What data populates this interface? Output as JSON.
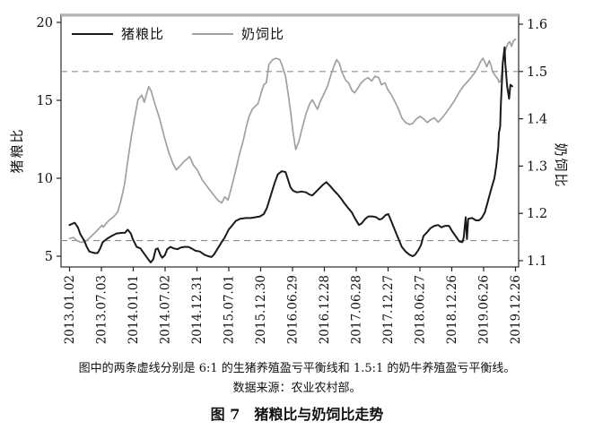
{
  "figure": {
    "note": "图中的两条虚线分别是 6:1 的生猪养殖盈亏平衡线和 1.5:1 的奶牛养殖盈亏平衡线。",
    "source": "数据来源：农业农村部。",
    "title": "图 7　猪粮比与奶饲比走势"
  },
  "chart_data": {
    "type": "line",
    "legend_position": "top-left-inside",
    "left_axis": {
      "label": "猪粮比",
      "ticks": [
        "20",
        "15",
        "10",
        "5"
      ],
      "range": [
        4.3,
        20.5
      ]
    },
    "right_axis": {
      "label": "奶饲比",
      "ticks": [
        "1.6",
        "1.5",
        "1.4",
        "1.3",
        "1.2",
        "1.1"
      ],
      "range": [
        1.09,
        1.62
      ]
    },
    "x_axis": {
      "tick_labels": [
        "2013.01.02",
        "2013.07.03",
        "2014.01.01",
        "2014.07.02",
        "2014.12.31",
        "2015.07.01",
        "2015.12.30",
        "2016.06.29",
        "2016.12.28",
        "2017.06.28",
        "2017.12.27",
        "2018.06.27",
        "2018.12.26",
        "2019.06.26",
        "2019.12.26"
      ],
      "start_year": 2013.0,
      "end_year": 2019.98
    },
    "reference_lines": [
      {
        "name": "pig-breakeven",
        "axis": "left",
        "value": 6,
        "style": "dashed",
        "meaning": "6:1 生猪养殖盈亏平衡线"
      },
      {
        "name": "milk-breakeven",
        "axis": "right",
        "value": 1.5,
        "style": "dashed",
        "meaning": "1.5:1 奶牛养殖盈亏平衡线"
      }
    ],
    "series": [
      {
        "name": "猪粮比",
        "axis": "left",
        "color": "#1a1a1a",
        "width": 2.0,
        "points": [
          [
            2013.0,
            7.0
          ],
          [
            2013.08,
            7.15
          ],
          [
            2013.13,
            6.85
          ],
          [
            2013.17,
            6.4
          ],
          [
            2013.23,
            6.0
          ],
          [
            2013.27,
            5.6
          ],
          [
            2013.31,
            5.3
          ],
          [
            2013.39,
            5.2
          ],
          [
            2013.44,
            5.2
          ],
          [
            2013.48,
            5.5
          ],
          [
            2013.52,
            5.9
          ],
          [
            2013.58,
            6.1
          ],
          [
            2013.66,
            6.3
          ],
          [
            2013.73,
            6.45
          ],
          [
            2013.82,
            6.5
          ],
          [
            2013.87,
            6.5
          ],
          [
            2013.91,
            6.7
          ],
          [
            2013.96,
            6.45
          ],
          [
            2013.99,
            6.1
          ],
          [
            2014.05,
            5.6
          ],
          [
            2014.11,
            5.5
          ],
          [
            2014.18,
            5.1
          ],
          [
            2014.24,
            4.75
          ],
          [
            2014.27,
            4.6
          ],
          [
            2014.31,
            4.8
          ],
          [
            2014.35,
            5.45
          ],
          [
            2014.38,
            5.5
          ],
          [
            2014.42,
            5.1
          ],
          [
            2014.45,
            4.9
          ],
          [
            2014.49,
            5.05
          ],
          [
            2014.53,
            5.45
          ],
          [
            2014.58,
            5.6
          ],
          [
            2014.63,
            5.5
          ],
          [
            2014.69,
            5.45
          ],
          [
            2014.74,
            5.55
          ],
          [
            2014.8,
            5.6
          ],
          [
            2014.86,
            5.6
          ],
          [
            2014.91,
            5.5
          ],
          [
            2014.97,
            5.35
          ],
          [
            2015.04,
            5.3
          ],
          [
            2015.11,
            5.1
          ],
          [
            2015.17,
            5.0
          ],
          [
            2015.22,
            4.95
          ],
          [
            2015.26,
            5.1
          ],
          [
            2015.32,
            5.5
          ],
          [
            2015.38,
            5.9
          ],
          [
            2015.43,
            6.2
          ],
          [
            2015.49,
            6.7
          ],
          [
            2015.55,
            7.0
          ],
          [
            2015.6,
            7.25
          ],
          [
            2015.67,
            7.4
          ],
          [
            2015.76,
            7.45
          ],
          [
            2015.84,
            7.45
          ],
          [
            2015.91,
            7.5
          ],
          [
            2015.98,
            7.55
          ],
          [
            2016.04,
            7.7
          ],
          [
            2016.09,
            8.1
          ],
          [
            2016.15,
            8.9
          ],
          [
            2016.21,
            9.7
          ],
          [
            2016.26,
            10.25
          ],
          [
            2016.32,
            10.45
          ],
          [
            2016.38,
            10.4
          ],
          [
            2016.42,
            9.9
          ],
          [
            2016.46,
            9.4
          ],
          [
            2016.5,
            9.2
          ],
          [
            2016.56,
            9.1
          ],
          [
            2016.63,
            9.15
          ],
          [
            2016.7,
            9.1
          ],
          [
            2016.76,
            8.95
          ],
          [
            2016.8,
            8.9
          ],
          [
            2016.85,
            9.1
          ],
          [
            2016.91,
            9.35
          ],
          [
            2016.97,
            9.6
          ],
          [
            2017.02,
            9.75
          ],
          [
            2017.08,
            9.5
          ],
          [
            2017.13,
            9.25
          ],
          [
            2017.19,
            9.0
          ],
          [
            2017.25,
            8.7
          ],
          [
            2017.3,
            8.4
          ],
          [
            2017.36,
            8.1
          ],
          [
            2017.42,
            7.8
          ],
          [
            2017.47,
            7.4
          ],
          [
            2017.53,
            7.0
          ],
          [
            2017.57,
            7.1
          ],
          [
            2017.63,
            7.4
          ],
          [
            2017.68,
            7.55
          ],
          [
            2017.74,
            7.55
          ],
          [
            2017.8,
            7.5
          ],
          [
            2017.85,
            7.35
          ],
          [
            2017.89,
            7.4
          ],
          [
            2017.95,
            7.65
          ],
          [
            2017.99,
            7.7
          ],
          [
            2018.03,
            7.3
          ],
          [
            2018.09,
            6.7
          ],
          [
            2018.15,
            6.1
          ],
          [
            2018.2,
            5.6
          ],
          [
            2018.26,
            5.3
          ],
          [
            2018.32,
            5.1
          ],
          [
            2018.37,
            5.0
          ],
          [
            2018.41,
            5.1
          ],
          [
            2018.46,
            5.4
          ],
          [
            2018.5,
            5.7
          ],
          [
            2018.54,
            6.3
          ],
          [
            2018.6,
            6.55
          ],
          [
            2018.65,
            6.8
          ],
          [
            2018.71,
            6.95
          ],
          [
            2018.77,
            7.0
          ],
          [
            2018.82,
            6.85
          ],
          [
            2018.88,
            6.95
          ],
          [
            2018.94,
            6.95
          ],
          [
            2018.99,
            6.6
          ],
          [
            2019.05,
            6.25
          ],
          [
            2019.1,
            5.95
          ],
          [
            2019.15,
            5.9
          ],
          [
            2019.17,
            6.2
          ],
          [
            2019.2,
            7.5
          ],
          [
            2019.22,
            6.1
          ],
          [
            2019.24,
            7.4
          ],
          [
            2019.3,
            7.45
          ],
          [
            2019.36,
            7.3
          ],
          [
            2019.41,
            7.3
          ],
          [
            2019.45,
            7.45
          ],
          [
            2019.5,
            7.8
          ],
          [
            2019.54,
            8.4
          ],
          [
            2019.58,
            9.0
          ],
          [
            2019.62,
            9.6
          ],
          [
            2019.65,
            10.0
          ],
          [
            2019.68,
            10.8
          ],
          [
            2019.71,
            12.0
          ],
          [
            2019.72,
            12.9
          ],
          [
            2019.74,
            13.3
          ],
          [
            2019.75,
            14.6
          ],
          [
            2019.77,
            16.3
          ],
          [
            2019.78,
            17.4
          ],
          [
            2019.81,
            18.4
          ],
          [
            2019.82,
            17.4
          ],
          [
            2019.85,
            15.9
          ],
          [
            2019.88,
            15.1
          ],
          [
            2019.9,
            16.0
          ],
          [
            2019.93,
            15.9
          ]
        ]
      },
      {
        "name": "奶饲比",
        "axis": "right",
        "color": "#a0a0a0",
        "width": 1.7,
        "points": [
          [
            2013.0,
            1.147
          ],
          [
            2013.06,
            1.149
          ],
          [
            2013.11,
            1.143
          ],
          [
            2013.17,
            1.139
          ],
          [
            2013.23,
            1.139
          ],
          [
            2013.27,
            1.143
          ],
          [
            2013.32,
            1.149
          ],
          [
            2013.38,
            1.157
          ],
          [
            2013.42,
            1.162
          ],
          [
            2013.46,
            1.168
          ],
          [
            2013.51,
            1.175
          ],
          [
            2013.53,
            1.171
          ],
          [
            2013.58,
            1.18
          ],
          [
            2013.63,
            1.187
          ],
          [
            2013.69,
            1.193
          ],
          [
            2013.75,
            1.202
          ],
          [
            2013.8,
            1.225
          ],
          [
            2013.86,
            1.26
          ],
          [
            2013.91,
            1.31
          ],
          [
            2013.97,
            1.365
          ],
          [
            2014.03,
            1.41
          ],
          [
            2014.07,
            1.44
          ],
          [
            2014.13,
            1.45
          ],
          [
            2014.17,
            1.435
          ],
          [
            2014.21,
            1.455
          ],
          [
            2014.24,
            1.468
          ],
          [
            2014.28,
            1.458
          ],
          [
            2014.34,
            1.43
          ],
          [
            2014.41,
            1.4
          ],
          [
            2014.48,
            1.363
          ],
          [
            2014.55,
            1.33
          ],
          [
            2014.62,
            1.305
          ],
          [
            2014.67,
            1.292
          ],
          [
            2014.73,
            1.3
          ],
          [
            2014.79,
            1.31
          ],
          [
            2014.84,
            1.315
          ],
          [
            2014.88,
            1.32
          ],
          [
            2014.94,
            1.302
          ],
          [
            2015.0,
            1.292
          ],
          [
            2015.08,
            1.27
          ],
          [
            2015.17,
            1.254
          ],
          [
            2015.25,
            1.24
          ],
          [
            2015.32,
            1.228
          ],
          [
            2015.38,
            1.222
          ],
          [
            2015.43,
            1.235
          ],
          [
            2015.48,
            1.228
          ],
          [
            2015.53,
            1.252
          ],
          [
            2015.6,
            1.29
          ],
          [
            2015.66,
            1.325
          ],
          [
            2015.72,
            1.355
          ],
          [
            2015.77,
            1.385
          ],
          [
            2015.81,
            1.405
          ],
          [
            2015.86,
            1.42
          ],
          [
            2015.91,
            1.427
          ],
          [
            2015.95,
            1.432
          ],
          [
            2016.0,
            1.455
          ],
          [
            2016.04,
            1.472
          ],
          [
            2016.08,
            1.476
          ],
          [
            2016.12,
            1.515
          ],
          [
            2016.18,
            1.525
          ],
          [
            2016.23,
            1.528
          ],
          [
            2016.29,
            1.525
          ],
          [
            2016.33,
            1.512
          ],
          [
            2016.38,
            1.49
          ],
          [
            2016.42,
            1.455
          ],
          [
            2016.46,
            1.415
          ],
          [
            2016.5,
            1.37
          ],
          [
            2016.54,
            1.335
          ],
          [
            2016.59,
            1.352
          ],
          [
            2016.64,
            1.38
          ],
          [
            2016.7,
            1.41
          ],
          [
            2016.76,
            1.432
          ],
          [
            2016.8,
            1.44
          ],
          [
            2016.84,
            1.43
          ],
          [
            2016.88,
            1.42
          ],
          [
            2016.92,
            1.435
          ],
          [
            2016.98,
            1.452
          ],
          [
            2017.04,
            1.47
          ],
          [
            2017.09,
            1.492
          ],
          [
            2017.14,
            1.512
          ],
          [
            2017.18,
            1.525
          ],
          [
            2017.22,
            1.518
          ],
          [
            2017.26,
            1.5
          ],
          [
            2017.32,
            1.482
          ],
          [
            2017.37,
            1.475
          ],
          [
            2017.42,
            1.46
          ],
          [
            2017.46,
            1.455
          ],
          [
            2017.5,
            1.462
          ],
          [
            2017.56,
            1.475
          ],
          [
            2017.61,
            1.482
          ],
          [
            2017.67,
            1.487
          ],
          [
            2017.73,
            1.48
          ],
          [
            2017.78,
            1.49
          ],
          [
            2017.84,
            1.487
          ],
          [
            2017.88,
            1.472
          ],
          [
            2017.94,
            1.476
          ],
          [
            2017.98,
            1.462
          ],
          [
            2018.04,
            1.45
          ],
          [
            2018.09,
            1.437
          ],
          [
            2018.15,
            1.42
          ],
          [
            2018.2,
            1.402
          ],
          [
            2018.26,
            1.392
          ],
          [
            2018.32,
            1.388
          ],
          [
            2018.37,
            1.39
          ],
          [
            2018.43,
            1.4
          ],
          [
            2018.49,
            1.405
          ],
          [
            2018.54,
            1.4
          ],
          [
            2018.6,
            1.392
          ],
          [
            2018.65,
            1.398
          ],
          [
            2018.71,
            1.402
          ],
          [
            2018.77,
            1.393
          ],
          [
            2018.82,
            1.4
          ],
          [
            2018.89,
            1.412
          ],
          [
            2018.96,
            1.425
          ],
          [
            2019.03,
            1.44
          ],
          [
            2019.1,
            1.456
          ],
          [
            2019.17,
            1.47
          ],
          [
            2019.24,
            1.48
          ],
          [
            2019.3,
            1.49
          ],
          [
            2019.34,
            1.497
          ],
          [
            2019.39,
            1.508
          ],
          [
            2019.43,
            1.52
          ],
          [
            2019.47,
            1.528
          ],
          [
            2019.5,
            1.52
          ],
          [
            2019.53,
            1.51
          ],
          [
            2019.57,
            1.523
          ],
          [
            2019.6,
            1.512
          ],
          [
            2019.62,
            1.5
          ],
          [
            2019.67,
            1.49
          ],
          [
            2019.71,
            1.483
          ],
          [
            2019.72,
            1.477
          ],
          [
            2019.75,
            1.48
          ],
          [
            2019.78,
            1.516
          ],
          [
            2019.82,
            1.544
          ],
          [
            2019.86,
            1.559
          ],
          [
            2019.89,
            1.563
          ],
          [
            2019.92,
            1.553
          ],
          [
            2019.95,
            1.566
          ],
          [
            2019.98,
            1.568
          ]
        ]
      }
    ]
  }
}
